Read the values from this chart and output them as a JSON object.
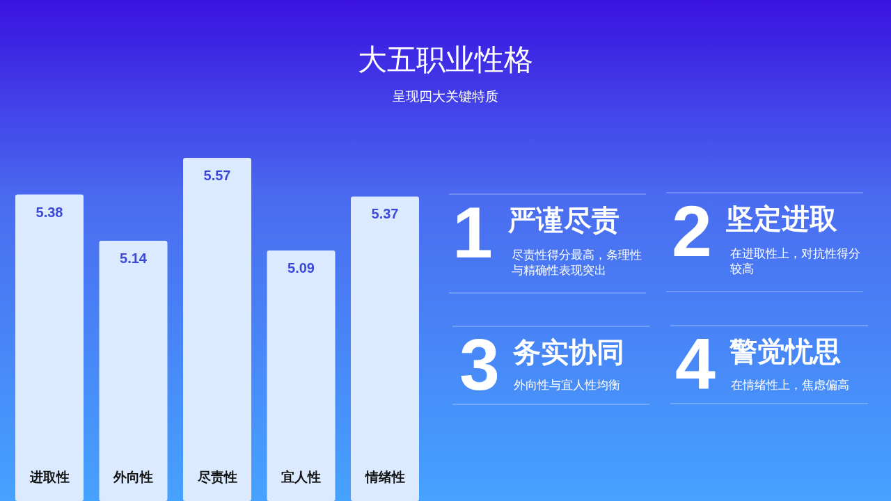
{
  "chart_data": [
    {
      "type": "bar",
      "title": "大五职业性格",
      "subtitle": "呈现四大关键特质",
      "categories": [
        "进取性",
        "外向性",
        "尽责性",
        "宜人性",
        "情绪性"
      ],
      "values": [
        5.38,
        5.14,
        5.57,
        5.09,
        5.37
      ],
      "color": "#dbeafe",
      "ylim": [
        3.79,
        5.57
      ],
      "data_labels": true
    },
    {
      "type": "other",
      "annotations": [
        "1",
        "严谨尽责",
        "尽责性得分最高，条理性与精确性表现突出",
        "2",
        "坚定进取",
        "在进取性上，对抗性得分较高",
        "3",
        "务实协同",
        "外向性与宜人性均衡",
        "4",
        "警觉忧思",
        "在情绪性上，焦虑偏高"
      ]
    }
  ]
}
